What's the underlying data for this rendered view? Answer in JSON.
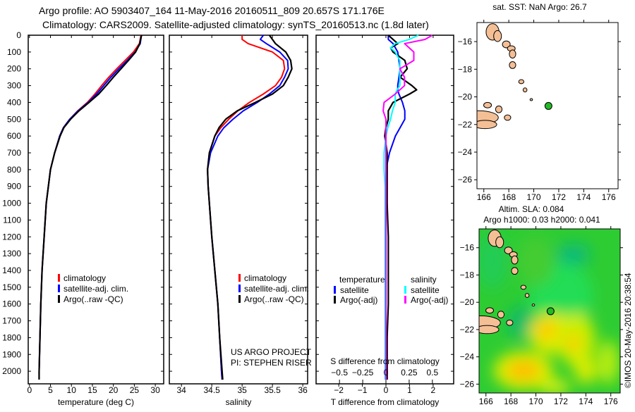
{
  "title": {
    "line1": "Argo profile: AO 5903407_164 11-May-2016 20160511_809 20.657S 171.176E",
    "line2": "Climatology: CARS2009. Satellite-adjusted climatology: synTS_20160513.nc (1.8d later)"
  },
  "colors": {
    "climatology": "#ff0000",
    "satellite": "#0000ff",
    "argo": "#000000",
    "sal_satellite": "#00ffff",
    "sal_argo": "#ff00ff",
    "land": "#f5bf96",
    "float": "#22bb22"
  },
  "chart_data": [
    {
      "type": "line",
      "name": "temperature-profile",
      "xlabel": "temperature (deg C)",
      "xlim": [
        -0.3,
        32
      ],
      "xticks": [
        0,
        5,
        10,
        15,
        20,
        25,
        30
      ],
      "ylim": [
        2075,
        0
      ],
      "yticks": [
        0,
        100,
        200,
        300,
        400,
        500,
        600,
        700,
        800,
        900,
        1000,
        1100,
        1200,
        1300,
        1400,
        1500,
        1600,
        1700,
        1800,
        1900,
        2000
      ],
      "legend": [
        "climatology",
        "satellite-adj. clim.",
        "Argo(..raw -QC)"
      ],
      "legend_placement": "lower-middle",
      "depth": [
        0,
        50,
        100,
        150,
        200,
        250,
        300,
        350,
        400,
        450,
        500,
        550,
        600,
        700,
        800,
        900,
        1000,
        1200,
        1400,
        1600,
        1800,
        2000,
        2050
      ],
      "series": [
        {
          "name": "climatology",
          "color_key": "climatology",
          "values": [
            26.6,
            26.2,
            24.8,
            22.8,
            20.8,
            18.9,
            17.2,
            15.6,
            13.8,
            11.5,
            9.6,
            8.1,
            7.2,
            6.0,
            5.0,
            4.5,
            4.0,
            3.5,
            3.0,
            2.7,
            2.5,
            2.3,
            2.3
          ]
        },
        {
          "name": "satellite-adj. clim.",
          "color_key": "satellite",
          "values": [
            26.7,
            26.4,
            25.2,
            23.3,
            21.3,
            19.4,
            17.7,
            16.0,
            14.0,
            11.6,
            9.6,
            8.1,
            7.2,
            6.0,
            5.0,
            4.5,
            4.0,
            3.5,
            3.0,
            2.7,
            2.5,
            2.3,
            2.3
          ]
        },
        {
          "name": "Argo(..raw -QC)",
          "color_key": "argo",
          "values": [
            26.7,
            26.3,
            25.3,
            23.6,
            21.8,
            20.0,
            18.3,
            16.5,
            14.2,
            11.8,
            9.8,
            8.2,
            7.3,
            6.0,
            5.0,
            4.5,
            4.0,
            3.5,
            3.0,
            2.7,
            2.5,
            2.3,
            2.3
          ]
        }
      ]
    },
    {
      "type": "line",
      "name": "salinity-profile",
      "xlabel": "salinity",
      "xlim": [
        33.8,
        36.08
      ],
      "xticks": [
        34,
        34.5,
        35,
        35.5,
        36
      ],
      "ylim": [
        2075,
        0
      ],
      "legend": [
        "climatology",
        "satellite-adj. clim.",
        "Argo(..raw -QC)"
      ],
      "legend_placement": "lower-middle",
      "annotation": [
        "US ARGO PROJECT",
        "PI: STEPHEN RISER"
      ],
      "depth": [
        0,
        25,
        50,
        100,
        150,
        200,
        250,
        300,
        350,
        400,
        450,
        500,
        550,
        600,
        700,
        800,
        900,
        1000,
        1200,
        1400,
        1600,
        1800,
        2000,
        2050
      ],
      "series": [
        {
          "name": "climatology",
          "color_key": "climatology",
          "values": [
            35.0,
            35.0,
            35.1,
            35.5,
            35.68,
            35.7,
            35.65,
            35.55,
            35.35,
            35.12,
            34.93,
            34.78,
            34.65,
            34.55,
            34.46,
            34.43,
            34.44,
            34.46,
            34.5,
            34.55,
            34.6,
            34.63,
            34.66,
            34.67
          ]
        },
        {
          "name": "satellite-adj. clim.",
          "color_key": "satellite",
          "values": [
            35.35,
            35.3,
            35.4,
            35.62,
            35.75,
            35.76,
            35.7,
            35.62,
            35.45,
            35.25,
            35.02,
            34.85,
            34.7,
            34.6,
            34.48,
            34.43,
            34.44,
            34.46,
            34.5,
            34.55,
            34.6,
            34.63,
            34.66,
            34.67
          ]
        },
        {
          "name": "Argo(..raw -QC)",
          "color_key": "argo",
          "values": [
            35.45,
            35.5,
            35.55,
            35.72,
            35.8,
            35.82,
            35.76,
            35.68,
            35.5,
            35.22,
            34.92,
            34.73,
            34.62,
            34.55,
            34.46,
            34.43,
            34.44,
            34.46,
            34.5,
            34.55,
            34.6,
            34.63,
            34.67,
            34.68
          ]
        }
      ]
    },
    {
      "type": "line",
      "name": "difference-profile",
      "xlabel": "T difference from climatology",
      "xlabel_top": "S difference from climatology",
      "xlim": [
        -2.96,
        2.87
      ],
      "xticks": [
        -2,
        -1,
        0,
        1,
        2
      ],
      "s_xticks": [
        -0.5,
        -0.25,
        0,
        0.25,
        0.5
      ],
      "s_per_t": 0.254,
      "ylim": [
        2075,
        0
      ],
      "legend_headers": [
        "temperature",
        "salinity"
      ],
      "legend": [
        "satellite",
        "Argo(-adj)",
        "satellite",
        "Argo(-adj)"
      ],
      "depth": [
        0,
        25,
        50,
        75,
        100,
        150,
        200,
        250,
        300,
        325,
        350,
        400,
        450,
        500,
        550,
        600,
        700,
        800,
        900,
        1000,
        1200,
        1400,
        1600,
        1800,
        2000,
        2050
      ],
      "series": [
        {
          "name": "T satellite",
          "axis": "T",
          "color_key": "satellite",
          "values": [
            0.1,
            0.1,
            0.3,
            0.4,
            0.5,
            0.55,
            0.6,
            0.55,
            0.5,
            0.5,
            0.55,
            0.7,
            0.8,
            0.8,
            0.6,
            0.4,
            0.15,
            0.0,
            0.0,
            0.0,
            0.0,
            0.0,
            0.0,
            0.0,
            0.0,
            0.0
          ]
        },
        {
          "name": "T Argo(-adj)",
          "axis": "T",
          "color_key": "argo",
          "values": [
            0.1,
            0.3,
            0.5,
            0.2,
            0.3,
            0.8,
            0.9,
            0.6,
            1.1,
            1.3,
            1.0,
            0.3,
            0.1,
            0.1,
            0.0,
            -0.05,
            0.05,
            0.05,
            0.05,
            0.05,
            0.1,
            0.1,
            0.1,
            0.05,
            0.05,
            0.05
          ]
        },
        {
          "name": "S satellite",
          "axis": "S",
          "color_key": "sal_satellite",
          "values": [
            0.35,
            0.25,
            0.1,
            0.05,
            0.1,
            0.15,
            0.15,
            0.15,
            0.15,
            0.12,
            0.1,
            0.1,
            0.07,
            0.05,
            0.02,
            0.0,
            -0.02,
            -0.02,
            -0.01,
            -0.01,
            -0.01,
            -0.01,
            -0.01,
            -0.01,
            -0.01,
            -0.01
          ]
        },
        {
          "name": "S Argo(-adj)",
          "axis": "S",
          "color_key": "sal_argo",
          "values": [
            0.5,
            0.42,
            0.2,
            0.25,
            0.3,
            0.3,
            0.15,
            0.2,
            0.2,
            0.15,
            0.1,
            -0.02,
            -0.03,
            0.0,
            0.0,
            0.0,
            0.0,
            0.0,
            0.0,
            0.0,
            0.0,
            0.0,
            0.0,
            0.0,
            0.0,
            0.0
          ]
        }
      ]
    }
  ],
  "maps": {
    "sst": {
      "title": "sat. SST: NaN Argo: 26.7",
      "lon_ticks": [
        166,
        168,
        170,
        172,
        174,
        176
      ],
      "lat_ticks": [
        -16,
        -18,
        -20,
        -22,
        -24,
        -26
      ]
    },
    "sla": {
      "title1": "Altim. SLA: 0.084",
      "title2": "Argo h1000: 0.03 h2000: 0.041",
      "lon_ticks": [
        166,
        168,
        170,
        172,
        174,
        176
      ],
      "lat_ticks": [
        -16,
        -18,
        -20,
        -22,
        -24,
        -26
      ]
    },
    "float_position": {
      "lat": -20.657,
      "lon": 171.176
    }
  },
  "copyright": "©IMOS 20-May-2016 20:38:54"
}
